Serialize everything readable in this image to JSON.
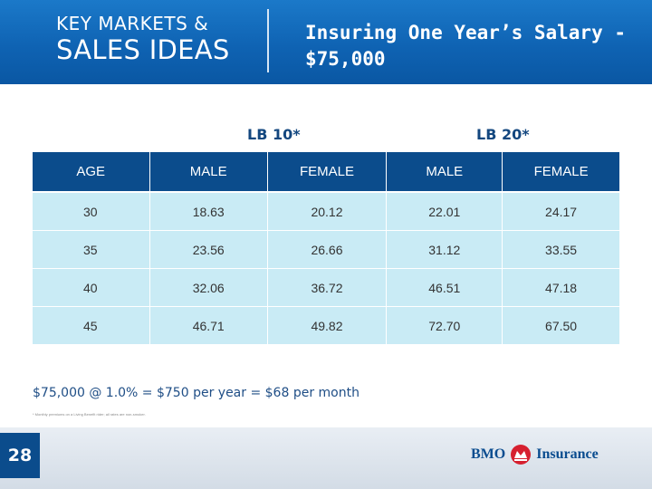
{
  "header": {
    "kicker_line1": "KEY MARKETS &",
    "kicker_line2": "SALES IDEAS",
    "title_line1": "Insuring One Year’s Salary -",
    "title_line2": "$75,000"
  },
  "plans": {
    "lb10": "LB 10*",
    "lb20": "LB 20*"
  },
  "table": {
    "headers": [
      "AGE",
      "MALE",
      "FEMALE",
      "MALE",
      "FEMALE"
    ],
    "rows": [
      [
        "30",
        "18.63",
        "20.12",
        "22.01",
        "24.17"
      ],
      [
        "35",
        "23.56",
        "26.66",
        "31.12",
        "33.55"
      ],
      [
        "40",
        "32.06",
        "36.72",
        "46.51",
        "47.18"
      ],
      [
        "45",
        "46.71",
        "49.82",
        "72.70",
        "67.50"
      ]
    ]
  },
  "formula": "$75,000 @ 1.0% = $750 per year = $68 per month",
  "footnote": "* Monthly premiums on a Living Benefit rider; all rates are non-smoker.",
  "footer": {
    "page_number": "28",
    "brand": "BMO",
    "brand_suffix": "Insurance",
    "brand_color": "#0a4c8f",
    "mark_color": "#d6202f"
  }
}
